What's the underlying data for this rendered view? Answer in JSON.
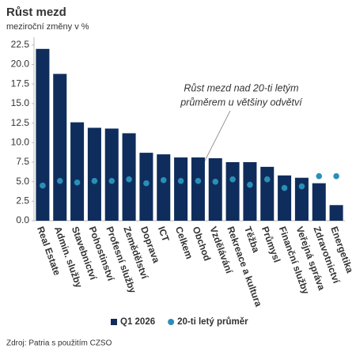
{
  "chart_data": {
    "type": "bar",
    "title": "Růst mezd",
    "subtitle": "meziroční změny v %",
    "annotation": [
      "Růst mezd nad 20-ti letým",
      "průměrem u většiny odvětví"
    ],
    "source": "Zdroj: Patria s použitím CZSO",
    "categories": [
      "Real Estate",
      "Admin. služby",
      "Stavebnictví",
      "Pohostinství",
      "Profesní služby",
      "Zemědělství",
      "Doprava",
      "ICT",
      "Celkem",
      "Obchod",
      "Vzdělávání",
      "Rekreace a kultura",
      "Těžba",
      "Průmysl",
      "Finanční služby",
      "Veřejná správa",
      "Zdravotnictví",
      "Energetika"
    ],
    "series": [
      {
        "name": "Q1 2026",
        "type": "bar",
        "color": "#0f2d5c",
        "values": [
          22.0,
          18.8,
          12.6,
          11.9,
          11.8,
          11.2,
          8.7,
          8.5,
          8.1,
          8.1,
          8.0,
          7.5,
          7.5,
          6.9,
          5.8,
          5.5,
          4.8,
          2.0
        ]
      },
      {
        "name": "20-ti letý průměr",
        "type": "dot",
        "color": "#2a8fb8",
        "values": [
          4.5,
          5.1,
          4.9,
          5.1,
          5.1,
          5.3,
          4.8,
          5.2,
          5.1,
          5.1,
          5.0,
          5.3,
          4.6,
          5.3,
          4.2,
          4.4,
          5.7,
          5.7
        ]
      }
    ],
    "ylim": [
      0,
      23.5
    ],
    "yticks": [
      {
        "value": 0,
        "label": "0.0"
      },
      {
        "value": 2.5,
        "label": "2.5"
      },
      {
        "value": 5,
        "label": "5.0"
      },
      {
        "value": 7.5,
        "label": "7.5"
      },
      {
        "value": 10,
        "label": "10.0"
      },
      {
        "value": 12.5,
        "label": "12.5"
      },
      {
        "value": 15,
        "label": "15.0"
      },
      {
        "value": 17.5,
        "label": "17.5"
      },
      {
        "value": 20,
        "label": "20.0"
      },
      {
        "value": 22.5,
        "label": "22.5"
      }
    ],
    "grid": false,
    "legend": "bottom"
  }
}
